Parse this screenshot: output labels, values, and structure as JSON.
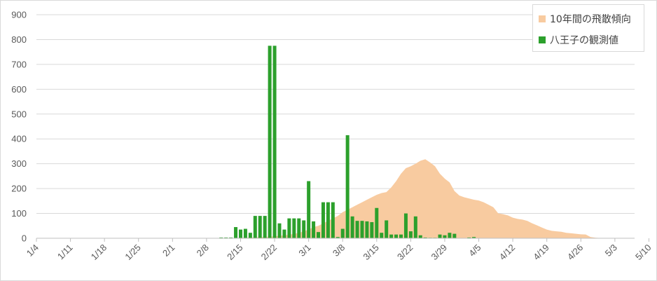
{
  "chart_data": {
    "type": "bar",
    "xlabel": "",
    "ylabel": "",
    "ylim": [
      0,
      900
    ],
    "yticks": [
      0,
      100,
      200,
      300,
      400,
      500,
      600,
      700,
      800,
      900
    ],
    "x_tick_labels": [
      "1/4",
      "1/11",
      "1/18",
      "1/25",
      "2/1",
      "2/8",
      "2/15",
      "2/22",
      "3/1",
      "3/8",
      "3/15",
      "3/22",
      "3/29",
      "4/5",
      "4/12",
      "4/19",
      "4/26",
      "5/3",
      "5/10"
    ],
    "grid": true,
    "legend_position": "top-right",
    "series": [
      {
        "name": "10年間の飛散傾向",
        "type": "area",
        "color": "#f8cba0",
        "day_offset_start": 0,
        "values": [
          0,
          0,
          0,
          0,
          0,
          0,
          0,
          0,
          0,
          0,
          0,
          0,
          0,
          0,
          0,
          0,
          0,
          0,
          0,
          0,
          0,
          0,
          0,
          0,
          0,
          0,
          0,
          0,
          0,
          0,
          0,
          0,
          0,
          0,
          0,
          0,
          0,
          0,
          0,
          0,
          0,
          1,
          2,
          3,
          3,
          4,
          5,
          6,
          6,
          8,
          10,
          12,
          14,
          18,
          22,
          28,
          35,
          45,
          50,
          60,
          70,
          80,
          90,
          105,
          115,
          125,
          135,
          145,
          155,
          165,
          175,
          182,
          186,
          205,
          230,
          260,
          282,
          290,
          300,
          312,
          318,
          305,
          290,
          260,
          240,
          225,
          190,
          172,
          165,
          160,
          155,
          152,
          145,
          135,
          125,
          100,
          97,
          92,
          83,
          78,
          75,
          70,
          60,
          52,
          43,
          35,
          30,
          28,
          26,
          22,
          20,
          18,
          16,
          15,
          5,
          2,
          1,
          0,
          0,
          0,
          0,
          0,
          0,
          0,
          0,
          0,
          0,
          0,
          0,
          0,
          0,
          0,
          0,
          0,
          0,
          0,
          0,
          0,
          0,
          0,
          0,
          0,
          0,
          0,
          0,
          0,
          0
        ]
      },
      {
        "name": "八王子の観測値",
        "type": "bar",
        "color": "#2ca02c",
        "points": [
          [
            38,
            3
          ],
          [
            39,
            3
          ],
          [
            40,
            3
          ],
          [
            41,
            45
          ],
          [
            42,
            35
          ],
          [
            43,
            38
          ],
          [
            44,
            22
          ],
          [
            45,
            90
          ],
          [
            46,
            90
          ],
          [
            47,
            90
          ],
          [
            48,
            775
          ],
          [
            49,
            775
          ],
          [
            50,
            60
          ],
          [
            51,
            35
          ],
          [
            52,
            80
          ],
          [
            53,
            80
          ],
          [
            54,
            80
          ],
          [
            55,
            72
          ],
          [
            56,
            230
          ],
          [
            57,
            68
          ],
          [
            58,
            25
          ],
          [
            59,
            145
          ],
          [
            60,
            145
          ],
          [
            61,
            145
          ],
          [
            62,
            5
          ],
          [
            63,
            38
          ],
          [
            64,
            415
          ],
          [
            65,
            88
          ],
          [
            66,
            70
          ],
          [
            67,
            70
          ],
          [
            68,
            68
          ],
          [
            69,
            65
          ],
          [
            70,
            122
          ],
          [
            71,
            22
          ],
          [
            72,
            72
          ],
          [
            73,
            15
          ],
          [
            74,
            15
          ],
          [
            75,
            15
          ],
          [
            76,
            100
          ],
          [
            77,
            28
          ],
          [
            78,
            88
          ],
          [
            79,
            12
          ],
          [
            80,
            3
          ],
          [
            81,
            2
          ],
          [
            82,
            2
          ],
          [
            83,
            15
          ],
          [
            84,
            12
          ],
          [
            85,
            22
          ],
          [
            86,
            18
          ],
          [
            89,
            3
          ],
          [
            90,
            5
          ]
        ]
      }
    ]
  },
  "legend": {
    "items": [
      {
        "label": "10年間の飛散傾向",
        "color": "#f8cba0"
      },
      {
        "label": "八王子の観測値",
        "color": "#2ca02c"
      }
    ]
  }
}
